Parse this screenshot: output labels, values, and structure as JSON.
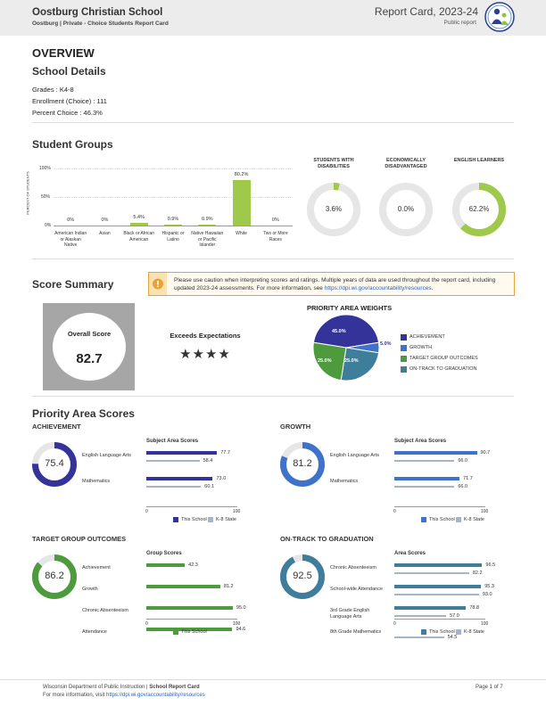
{
  "header": {
    "school_name": "Oostburg Christian School",
    "subtitle_city": "Oostburg",
    "subtitle_rest": "Private - Choice Students Report Card",
    "report_title": "Report Card, 2023-24",
    "report_sub": "Public report"
  },
  "overview": {
    "title": "OVERVIEW",
    "details_title": "School Details",
    "grades": "Grades :  K4-8",
    "enrollment": "Enrollment (Choice) :  111",
    "percent_choice": "Percent Choice :  46.3%"
  },
  "student_groups": {
    "title": "Student Groups",
    "y_axis_label": "PERCENT OF STUDENTS",
    "y_ticks": [
      "100%",
      "50%",
      "0%"
    ],
    "bars": [
      {
        "label": "American Indian or Alaskan Native",
        "value": 0.0,
        "value_label": "0%"
      },
      {
        "label": "Asian",
        "value": 0.0,
        "value_label": "0%"
      },
      {
        "label": "Black or African American",
        "value": 5.4,
        "value_label": "5.4%"
      },
      {
        "label": "Hispanic or Latino",
        "value": 0.9,
        "value_label": "0.9%"
      },
      {
        "label": "Native Hawaiian or Pacific Islander",
        "value": 0.9,
        "value_label": "0.9%"
      },
      {
        "label": "White",
        "value": 80.2,
        "value_label": "80.2%"
      },
      {
        "label": "Two or More Races",
        "value": 0.0,
        "value_label": "0%"
      }
    ],
    "rings": [
      {
        "title": "STUDENTS WITH DISABILITIES",
        "value": 3.6,
        "value_label": "3.6%"
      },
      {
        "title": "ECONOMICALLY DISADVANTAGED",
        "value": 0.0,
        "value_label": "0.0%"
      },
      {
        "title": "ENGLISH LEARNERS",
        "value": 62.2,
        "value_label": "62.2%"
      }
    ],
    "colors": {
      "green": "#9fc94b",
      "ring_bg": "#e6e6e6"
    }
  },
  "score_summary": {
    "title": "Score Summary",
    "caution_text": "Please use caution when interpreting scores and ratings. Multiple years of data are used throughout the report card, including updated 2023-24 assessments. For more information, see",
    "caution_link": "https://dpi.wi.gov/accountability/resources",
    "caution_end": ".",
    "overall_label": "Overall Score",
    "overall_value": "82.7",
    "rating": "Exceeds Expectations",
    "stars": "★★★★",
    "star_count": 4,
    "weights_title": "PRIORITY AREA WEIGHTS",
    "weights": [
      {
        "name": "ACHIEVEMENT",
        "value": 45.0,
        "label": "45.0%",
        "color": "#33339a"
      },
      {
        "name": "GROWTH",
        "value": 5.0,
        "label": "5.0%",
        "color": "#3f72c9"
      },
      {
        "name": "TARGET GROUP OUTCOMES",
        "value": 25.0,
        "label": "25.0%",
        "color": "#4e9b3e"
      },
      {
        "name": "ON-TRACK TO GRADUATION",
        "value": 25.0,
        "label": "25.0%",
        "color": "#3e7e9b"
      }
    ]
  },
  "priority": {
    "title": "Priority Area Scores",
    "legend_school": "This School",
    "legend_state": "K-8 State",
    "axis_min": "0",
    "axis_max": "100",
    "state_color": "#a5b4c7",
    "achievement": {
      "title": "ACHIEVEMENT",
      "score": "75.4",
      "score_value": 75.4,
      "color": "#33339a",
      "chart_title": "Subject Area Scores",
      "rows": [
        {
          "label": "English Language Arts",
          "school": 77.7,
          "state": 58.4,
          "school_label": "77.7",
          "state_label": "58.4"
        },
        {
          "label": "Mathematics",
          "school": 73.0,
          "state": 60.1,
          "school_label": "73.0",
          "state_label": "60.1"
        }
      ]
    },
    "growth": {
      "title": "GROWTH",
      "score": "81.2",
      "score_value": 81.2,
      "color": "#3f72c9",
      "chart_title": "Subject Area Scores",
      "rows": [
        {
          "label": "English Language Arts",
          "school": 90.7,
          "state": 66.0,
          "school_label": "90.7",
          "state_label": "66.0"
        },
        {
          "label": "Mathematics",
          "school": 71.7,
          "state": 66.0,
          "school_label": "71.7",
          "state_label": "66.0"
        }
      ]
    },
    "target": {
      "title": "TARGET GROUP OUTCOMES",
      "score": "86.2",
      "score_value": 86.2,
      "color": "#4e9b3e",
      "chart_title": "Group Scores",
      "rows": [
        {
          "label": "Achievement",
          "school": 42.3,
          "school_label": "42.3"
        },
        {
          "label": "Growth",
          "school": 81.2,
          "school_label": "81.2"
        },
        {
          "label": "Chronic Absenteeism",
          "school": 95.0,
          "school_label": "95.0"
        },
        {
          "label": "Attendance",
          "school": 94.6,
          "school_label": "94.6"
        }
      ]
    },
    "ontrack": {
      "title": "ON-TRACK TO GRADUATION",
      "score": "92.5",
      "score_value": 92.5,
      "color": "#3e7e9b",
      "chart_title": "Area Scores",
      "rows": [
        {
          "label": "Chronic Absenteeism",
          "school": 96.5,
          "state": 82.2,
          "school_label": "96.5",
          "state_label": "82.2"
        },
        {
          "label": "School-wide Attendance",
          "school": 95.3,
          "state": 93.0,
          "school_label": "95.3",
          "state_label": "93.0"
        },
        {
          "label": "3rd Grade English Language Arts",
          "school": 78.8,
          "state": 57.0,
          "school_label": "78.8",
          "state_label": "57.0"
        },
        {
          "label": "8th Grade Mathematics",
          "school": null,
          "state": 54.5,
          "school_label": "",
          "state_label": "54.5"
        }
      ]
    }
  },
  "footer": {
    "dept": "Wisconsin Department of Public Instruction | ",
    "doc": "School Report Card",
    "more": "For more information, visit ",
    "link": "https://dpi.wi.gov/accountability/resources",
    "page": "Page 1 of 7"
  }
}
